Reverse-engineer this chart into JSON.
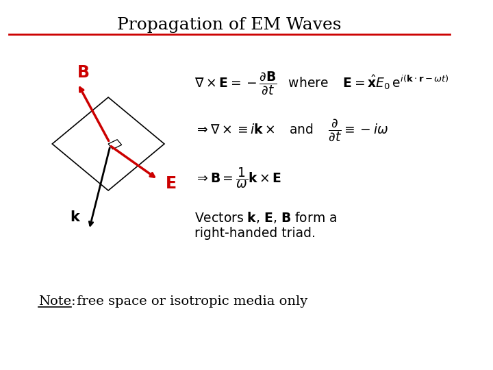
{
  "title": "Propagation of EM Waves",
  "title_fontsize": 18,
  "background_color": "#ffffff",
  "line_color_red": "#cc0000",
  "line_color_black": "#000000",
  "separator_color": "#cc0000",
  "note_rest": " free space or isotropic media only",
  "note_fontsize": 14
}
